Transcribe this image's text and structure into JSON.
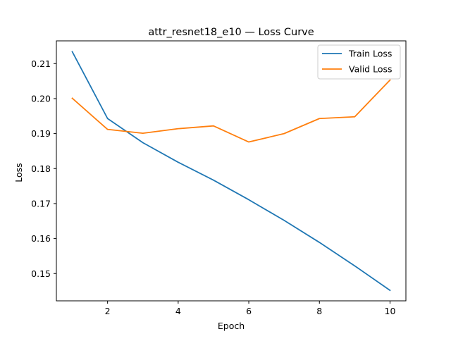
{
  "chart_data": {
    "type": "line",
    "title": "attr_resnet18_e10 — Loss Curve",
    "xlabel": "Epoch",
    "ylabel": "Loss",
    "x": [
      1,
      2,
      3,
      4,
      5,
      6,
      7,
      8,
      9,
      10
    ],
    "xlim": [
      0.55,
      10.45
    ],
    "ylim": [
      0.1422,
      0.2165
    ],
    "x_ticks": [
      2,
      4,
      6,
      8,
      10
    ],
    "y_ticks": [
      0.15,
      0.16,
      0.17,
      0.18,
      0.19,
      0.2,
      0.21
    ],
    "x_tick_labels": [
      "2",
      "4",
      "6",
      "8",
      "10"
    ],
    "y_tick_labels": [
      "0.15",
      "0.16",
      "0.17",
      "0.18",
      "0.19",
      "0.20",
      "0.21"
    ],
    "grid": false,
    "legend_position": "top-right",
    "series": [
      {
        "name": "Train Loss",
        "color": "#1f77b4",
        "values": [
          0.2134,
          0.1943,
          0.1874,
          0.1818,
          0.1767,
          0.1711,
          0.1652,
          0.1589,
          0.1522,
          0.1452
        ]
      },
      {
        "name": "Valid Loss",
        "color": "#ff7f0e",
        "values": [
          0.2001,
          0.1912,
          0.1901,
          0.1914,
          0.1922,
          0.1876,
          0.19,
          0.1943,
          0.1948,
          0.2053
        ]
      }
    ]
  }
}
